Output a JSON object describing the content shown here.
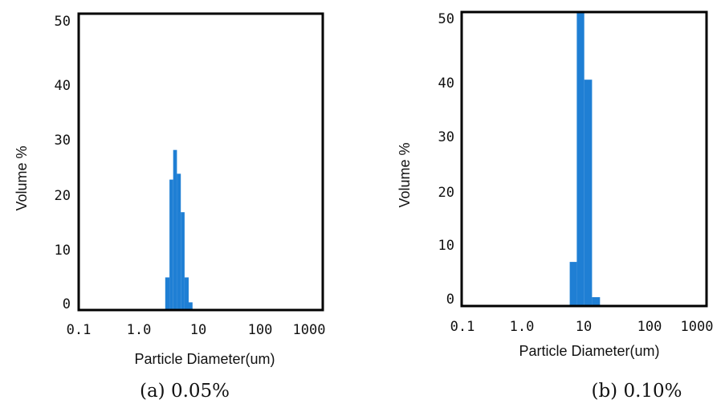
{
  "chart_data": [
    {
      "type": "bar",
      "caption": "(a) 0.05%",
      "ylabel": "Volume %",
      "xlabel": "Particle Diameter(um)",
      "x_scale": "log",
      "xlim": [
        0.1,
        1000
      ],
      "x_tick_labels": [
        "0.1",
        "1.0",
        "10",
        "100",
        "1000"
      ],
      "ylim": [
        0,
        50
      ],
      "y_tick_labels": [
        "0",
        "10",
        "20",
        "30",
        "40",
        "50"
      ],
      "bars": [
        {
          "x0": 2.8,
          "x1": 3.3,
          "value": 5.5
        },
        {
          "x0": 3.3,
          "x1": 3.8,
          "value": 22
        },
        {
          "x0": 3.8,
          "x1": 4.4,
          "value": 27
        },
        {
          "x0": 4.4,
          "x1": 5.1,
          "value": 23
        },
        {
          "x0": 5.1,
          "x1": 5.9,
          "value": 16.5
        },
        {
          "x0": 5.9,
          "x1": 6.9,
          "value": 5.5
        },
        {
          "x0": 6.9,
          "x1": 8.0,
          "value": 1.3
        }
      ]
    },
    {
      "type": "bar",
      "caption": "(b) 0.10%",
      "ylabel": "Volume %",
      "xlabel": "Particle Diameter(um)",
      "x_scale": "log",
      "xlim": [
        0.1,
        1000
      ],
      "x_tick_labels": [
        "0.1",
        "1.0",
        "10",
        "100",
        "1000"
      ],
      "ylim": [
        0,
        50
      ],
      "y_tick_labels": [
        "0",
        "10",
        "20",
        "30",
        "40",
        "50"
      ],
      "bars": [
        {
          "x0": 5.9,
          "x1": 7.7,
          "value": 7.5
        },
        {
          "x0": 7.7,
          "x1": 10.2,
          "value": 50
        },
        {
          "x0": 10.2,
          "x1": 13.7,
          "value": 38.5
        },
        {
          "x0": 13.7,
          "x1": 18.5,
          "value": 1.5
        }
      ]
    }
  ],
  "colors": {
    "bar": "#1f7fd4",
    "axis": "#000000"
  }
}
